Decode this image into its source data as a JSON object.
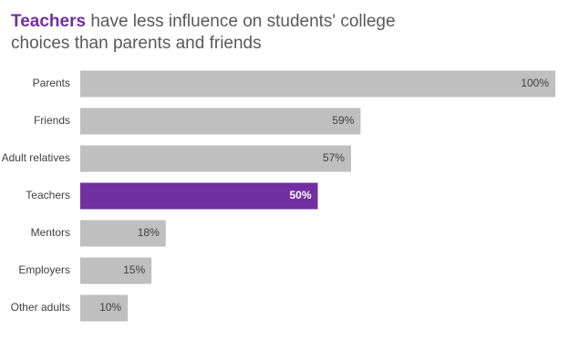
{
  "chart_data": {
    "type": "bar",
    "orientation": "horizontal",
    "title_highlight": "Teachers",
    "title": "have less influence on students' college choices than parents and friends",
    "highlight_color": "#7030a0",
    "categories": [
      "Parents",
      "Friends",
      "Adult relatives",
      "Teachers",
      "Mentors",
      "Employers",
      "Other adults"
    ],
    "values": [
      100,
      59,
      57,
      50,
      18,
      15,
      10
    ],
    "value_labels": [
      "100%",
      "59%",
      "57%",
      "50%",
      "18%",
      "15%",
      "10%"
    ],
    "colors": [
      "#bfbfbf",
      "#bfbfbf",
      "#bfbfbf",
      "#7030a0",
      "#bfbfbf",
      "#bfbfbf",
      "#bfbfbf"
    ]
  }
}
